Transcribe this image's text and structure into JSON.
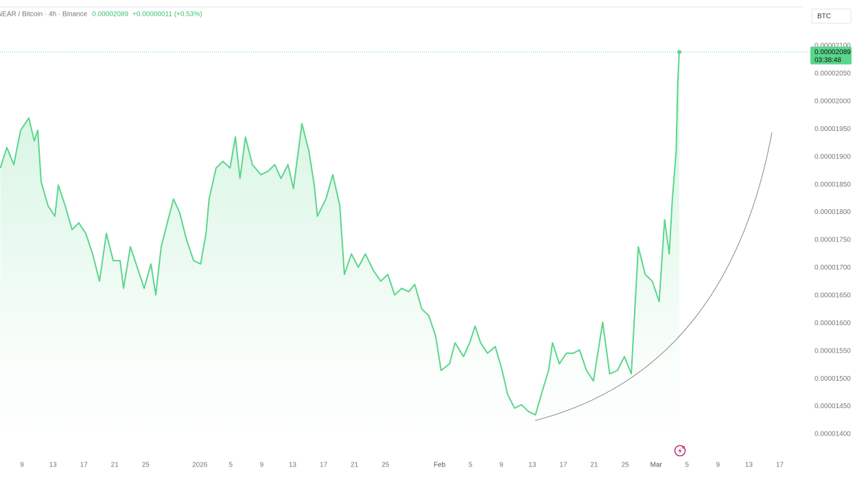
{
  "chart_data": {
    "type": "area",
    "title": "NEAR / Bitcoin · 4h · Binance",
    "last_label": "0.00002089",
    "change_label": "+0.00000011 (+0.53%)",
    "currency": "BTC",
    "price_tag": {
      "value": 2.089e-05,
      "label": "0.00002089",
      "countdown": "03:38:48"
    },
    "color": "#5ad68b",
    "x": [
      -2.8,
      -1.95,
      -1.06,
      -0.18,
      0.89,
      1.6,
      2.04,
      2.48,
      3.37,
      4.26,
      4.7,
      5.59,
      6.48,
      7.36,
      8.25,
      9.14,
      10.03,
      10.91,
      11.8,
      12.69,
      13.13,
      14.02,
      14.91,
      15.8,
      16.68,
      17.3,
      18.0,
      18.9,
      19.6,
      20.4,
      21.3,
      22.2,
      23.1,
      23.8,
      24.2,
      25.1,
      26.0,
      26.9,
      27.6,
      28.2,
      28.9,
      29.8,
      30.9,
      31.8,
      32.7,
      33.5,
      34.4,
      35.1,
      36.2,
      37.1,
      37.8,
      38.2,
      39.3,
      40.2,
      41.1,
      41.7,
      42.6,
      43.5,
      44.4,
      45.5,
      46.4,
      47.3,
      48.2,
      49.1,
      50.0,
      50.8,
      51.7,
      52.6,
      53.5,
      54.2,
      55.3,
      56.0,
      57.1,
      57.9,
      58.6,
      59.3,
      60.2,
      61.2,
      62.1,
      62.8,
      63.7,
      64.6,
      65.5,
      66.4,
      67.3,
      68.1,
      68.6,
      69.5,
      70.4,
      71.3,
      72.1,
      73.0,
      73.9,
      75.1,
      76.0,
      77.0,
      77.9,
      78.8,
      79.7,
      80.6,
      81.5,
      82.4,
      83.1,
      83.7,
      84.1,
      84.6,
      84.8,
      85.0
    ],
    "values": [
      1.88e-05,
      1.917e-05,
      1.886e-05,
      1.948e-05,
      1.97e-05,
      1.929e-05,
      1.948e-05,
      1.855e-05,
      1.812e-05,
      1.793e-05,
      1.849e-05,
      1.812e-05,
      1.769e-05,
      1.781e-05,
      1.762e-05,
      1.725e-05,
      1.676e-05,
      1.762e-05,
      1.713e-05,
      1.713e-05,
      1.663e-05,
      1.738e-05,
      1.701e-05,
      1.663e-05,
      1.707e-05,
      1.651e-05,
      1.738e-05,
      1.787e-05,
      1.824e-05,
      1.799e-05,
      1.75e-05,
      1.713e-05,
      1.707e-05,
      1.762e-05,
      1.824e-05,
      1.88e-05,
      1.892e-05,
      1.88e-05,
      1.936e-05,
      1.861e-05,
      1.936e-05,
      1.886e-05,
      1.868e-05,
      1.874e-05,
      1.886e-05,
      1.861e-05,
      1.886e-05,
      1.843e-05,
      1.96e-05,
      1.911e-05,
      1.849e-05,
      1.793e-05,
      1.824e-05,
      1.868e-05,
      1.812e-05,
      1.688e-05,
      1.725e-05,
      1.701e-05,
      1.725e-05,
      1.694e-05,
      1.676e-05,
      1.688e-05,
      1.651e-05,
      1.663e-05,
      1.657e-05,
      1.67e-05,
      1.626e-05,
      1.614e-05,
      1.577e-05,
      1.515e-05,
      1.527e-05,
      1.565e-05,
      1.54e-05,
      1.565e-05,
      1.595e-05,
      1.565e-05,
      1.546e-05,
      1.558e-05,
      1.515e-05,
      1.472e-05,
      1.447e-05,
      1.453e-05,
      1.441e-05,
      1.435e-05,
      1.478e-05,
      1.515e-05,
      1.565e-05,
      1.527e-05,
      1.546e-05,
      1.546e-05,
      1.552e-05,
      1.515e-05,
      1.496e-05,
      1.602e-05,
      1.509e-05,
      1.515e-05,
      1.54e-05,
      1.509e-05,
      1.738e-05,
      1.688e-05,
      1.676e-05,
      1.639e-05,
      1.787e-05,
      1.725e-05,
      1.824e-05,
      1.911e-05,
      2.034e-05,
      2.089e-05
    ],
    "xlim": [
      -2.84,
      100.98
    ],
    "ylim": [
      1.3666e-05,
      2.1705e-05
    ],
    "xticks": [
      {
        "value": 0,
        "label": "9"
      },
      {
        "value": 4,
        "label": "13"
      },
      {
        "value": 8,
        "label": "17"
      },
      {
        "value": 12,
        "label": "21"
      },
      {
        "value": 16,
        "label": "25"
      },
      {
        "value": 23,
        "label": "2026"
      },
      {
        "value": 27,
        "label": "5"
      },
      {
        "value": 31,
        "label": "9"
      },
      {
        "value": 35,
        "label": "13"
      },
      {
        "value": 39,
        "label": "17"
      },
      {
        "value": 43,
        "label": "21"
      },
      {
        "value": 47,
        "label": "25"
      },
      {
        "value": 54,
        "label": "Feb"
      },
      {
        "value": 58,
        "label": "5"
      },
      {
        "value": 62,
        "label": "9"
      },
      {
        "value": 66,
        "label": "13"
      },
      {
        "value": 70,
        "label": "17"
      },
      {
        "value": 74,
        "label": "21"
      },
      {
        "value": 78,
        "label": "25"
      },
      {
        "value": 82,
        "label": "Mar"
      },
      {
        "value": 86,
        "label": "5"
      },
      {
        "value": 90,
        "label": "9"
      },
      {
        "value": 94,
        "label": "13"
      },
      {
        "value": 98,
        "label": "17"
      }
    ],
    "yticks": [
      {
        "value": 2.1e-05,
        "label": "0.00002100"
      },
      {
        "value": 2.05e-05,
        "label": "0.00002050"
      },
      {
        "value": 2e-05,
        "label": "0.00002000"
      },
      {
        "value": 1.95e-05,
        "label": "0.00001950"
      },
      {
        "value": 1.9e-05,
        "label": "0.00001900"
      },
      {
        "value": 1.85e-05,
        "label": "0.00001850"
      },
      {
        "value": 1.8e-05,
        "label": "0.00001800"
      },
      {
        "value": 1.75e-05,
        "label": "0.00001750"
      },
      {
        "value": 1.7e-05,
        "label": "0.00001700"
      },
      {
        "value": 1.65e-05,
        "label": "0.00001650"
      },
      {
        "value": 1.6e-05,
        "label": "0.00001600"
      },
      {
        "value": 1.55e-05,
        "label": "0.00001550"
      },
      {
        "value": 1.5e-05,
        "label": "0.00001500"
      },
      {
        "value": 1.45e-05,
        "label": "0.00001450"
      },
      {
        "value": 1.4e-05,
        "label": "0.00001400"
      }
    ]
  }
}
